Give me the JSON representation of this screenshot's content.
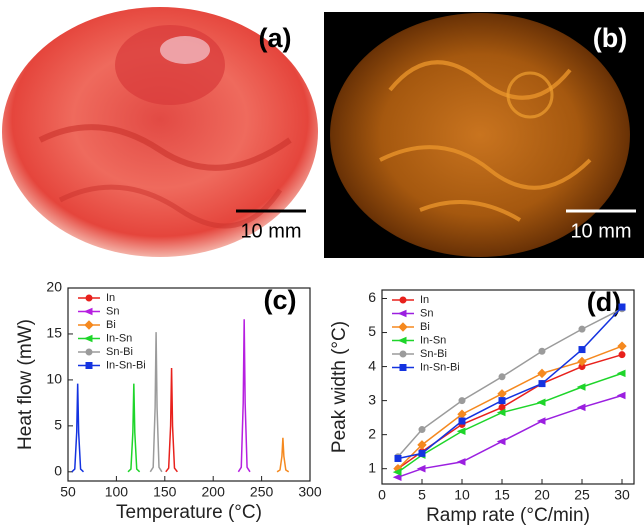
{
  "photos": [
    {
      "label": "(a)",
      "scale_bar": "10 mm"
    },
    {
      "label": "(b)",
      "scale_bar": "10 mm"
    }
  ],
  "chart_data": [
    {
      "type": "line",
      "label": "(c)",
      "xlabel": "Temperature (°C)",
      "ylabel": "Heat flow (mW)",
      "xlim": [
        50,
        300
      ],
      "xticks": [
        50,
        100,
        150,
        200,
        250,
        300
      ],
      "ylim": [
        -1,
        20
      ],
      "yticks": [
        0,
        5,
        10,
        15,
        20
      ],
      "legend": "upper-left",
      "series": [
        {
          "name": "In",
          "color": "#e8211c",
          "marker": "circle",
          "x": [
            151,
            154,
            156,
            157,
            158,
            160,
            163
          ],
          "values": [
            0,
            0.4,
            5,
            11.3,
            5,
            0.4,
            0
          ]
        },
        {
          "name": "Sn",
          "color": "#b61fe0",
          "marker": "triangle",
          "x": [
            226,
            229,
            231,
            232,
            233,
            235,
            238
          ],
          "values": [
            0,
            0.5,
            7.5,
            16.6,
            7.5,
            0.5,
            0
          ]
        },
        {
          "name": "Bi",
          "color": "#f5891f",
          "marker": "diamond",
          "x": [
            266,
            269,
            271,
            272,
            273,
            275,
            278
          ],
          "values": [
            0,
            0.2,
            1.7,
            3.7,
            1.7,
            0.2,
            0
          ]
        },
        {
          "name": "In-Sn",
          "color": "#1ed52a",
          "marker": "triangle",
          "x": [
            112,
            115,
            117,
            118,
            119,
            121,
            124
          ],
          "values": [
            0,
            0.3,
            4.3,
            9.6,
            4.3,
            0.3,
            0
          ]
        },
        {
          "name": "Sn-Bi",
          "color": "#9b9b9b",
          "marker": "circle",
          "x": [
            135,
            138,
            140,
            141,
            142,
            144,
            147
          ],
          "values": [
            0,
            0.5,
            7,
            15.2,
            7,
            0.5,
            0
          ]
        },
        {
          "name": "In-Sn-Bi",
          "color": "#1433e0",
          "marker": "square",
          "x": [
            54,
            57,
            59,
            60,
            61,
            63,
            66
          ],
          "values": [
            0,
            0.3,
            4.3,
            9.6,
            4.3,
            0.3,
            0
          ]
        }
      ]
    },
    {
      "type": "line",
      "label": "(d)",
      "xlabel": "Ramp rate (°C/min)",
      "ylabel": "Peak width (°C)",
      "xlim": [
        0,
        31.5
      ],
      "xticks": [
        0,
        5,
        10,
        15,
        20,
        25,
        30
      ],
      "ylim": [
        0.55,
        6.25
      ],
      "yticks": [
        1,
        2,
        3,
        4,
        5,
        6
      ],
      "legend": "upper-left",
      "x": [
        2,
        5,
        10,
        15,
        20,
        25,
        30
      ],
      "series": [
        {
          "name": "In",
          "color": "#e8211c",
          "marker": "circle",
          "values": [
            1.0,
            1.5,
            2.3,
            2.8,
            3.5,
            4.0,
            4.35
          ]
        },
        {
          "name": "Sn",
          "color": "#9b1fe0",
          "marker": "triangle",
          "values": [
            0.75,
            1.0,
            1.2,
            1.8,
            2.4,
            2.8,
            3.15
          ]
        },
        {
          "name": "Bi",
          "color": "#f5891f",
          "marker": "diamond",
          "values": [
            1.0,
            1.7,
            2.6,
            3.2,
            3.8,
            4.15,
            4.6
          ]
        },
        {
          "name": "In-Sn",
          "color": "#1ed52a",
          "marker": "triangle",
          "values": [
            0.9,
            1.4,
            2.1,
            2.65,
            2.95,
            3.4,
            3.8
          ]
        },
        {
          "name": "Sn-Bi",
          "color": "#9b9b9b",
          "marker": "circle",
          "values": [
            1.35,
            2.15,
            3.0,
            3.7,
            4.45,
            5.1,
            5.7
          ]
        },
        {
          "name": "In-Sn-Bi",
          "color": "#1433e0",
          "marker": "square",
          "values": [
            1.3,
            1.45,
            2.4,
            3.0,
            3.5,
            4.5,
            5.75
          ]
        }
      ]
    }
  ]
}
